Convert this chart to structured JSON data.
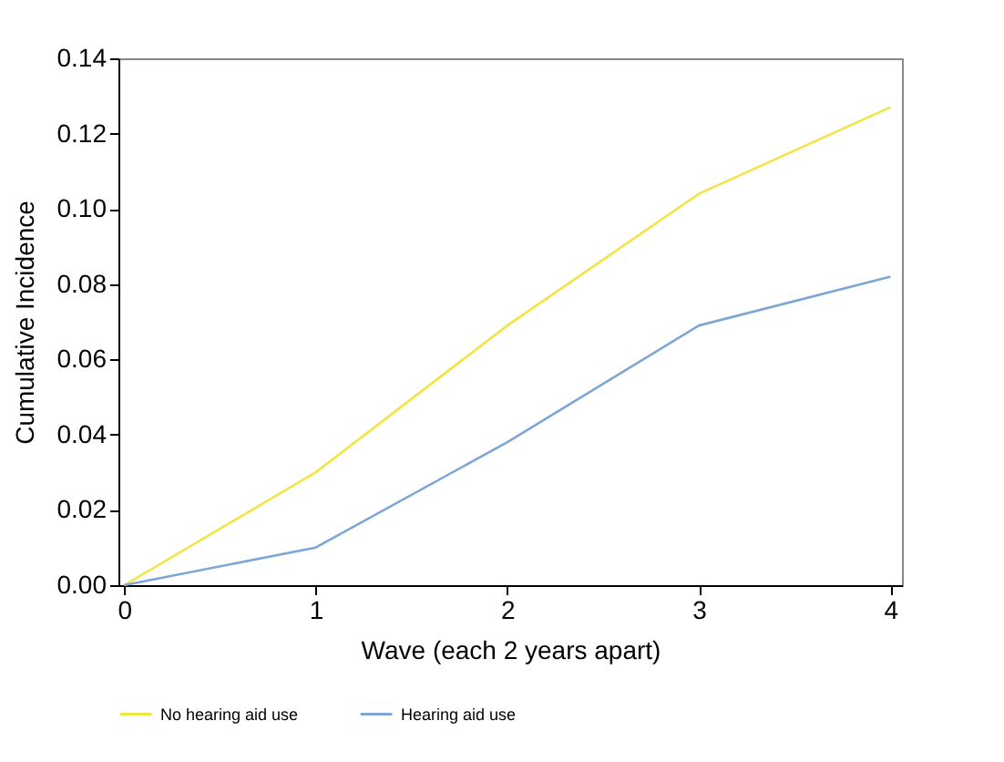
{
  "chart_data": {
    "type": "line",
    "xlabel": "Wave (each 2 years apart)",
    "ylabel": "Cumulative Incidence",
    "x": [
      0,
      1,
      2,
      3,
      4
    ],
    "series": [
      {
        "name": "No hearing aid use",
        "color": "#f2e443",
        "values": [
          0,
          0.03,
          0.069,
          0.104,
          0.127
        ]
      },
      {
        "name": "Hearing aid use",
        "color": "#7ea6d4",
        "values": [
          0,
          0.01,
          0.038,
          0.069,
          0.082
        ]
      }
    ],
    "xlim": [
      -0.03,
      4.06
    ],
    "xticks": [
      0,
      1,
      2,
      3,
      4
    ],
    "ylim": [
      0,
      0.14
    ],
    "yticks": [
      {
        "value": 0,
        "label": "0.00"
      },
      0.02,
      0.04,
      0.06,
      0.08,
      {
        "value": 0.1,
        "label": "0.10"
      },
      0.12,
      0.14
    ],
    "grid": false,
    "legend": "bottom",
    "marker": "none",
    "line_style": "solid"
  }
}
